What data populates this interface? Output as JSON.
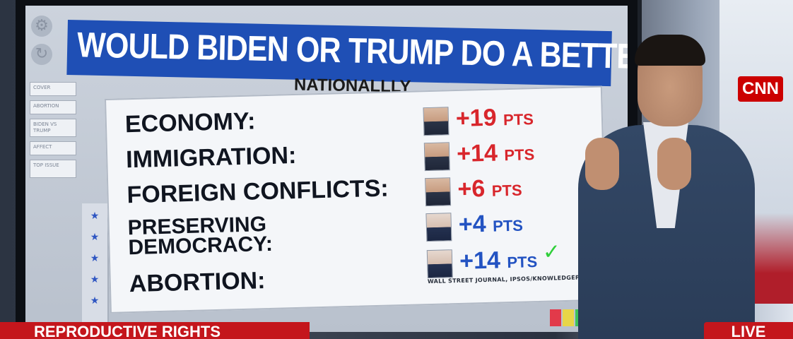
{
  "headline": "WOULD BIDEN OR TRUMP DO A BETTER JOB...",
  "subtitle": "NATIONALLLY",
  "side_menu": [
    "COVER",
    "ABORTION",
    "BIDEN VS TRUMP",
    "AFFECT",
    "TOP ISSUE"
  ],
  "issues": [
    {
      "label": "ECONOMY:",
      "candidate": "trump",
      "value": "+19",
      "unit": "PTS",
      "color": "#d8262c"
    },
    {
      "label": "IMMIGRATION:",
      "candidate": "trump",
      "value": "+14",
      "unit": "PTS",
      "color": "#d8262c"
    },
    {
      "label": "FOREIGN CONFLICTS:",
      "candidate": "trump",
      "value": "+6",
      "unit": "PTS",
      "color": "#d8262c"
    },
    {
      "label": "PRESERVING DEMOCRACY:",
      "candidate": "biden",
      "value": "+4",
      "unit": "PTS",
      "color": "#2353c2"
    },
    {
      "label": "ABORTION:",
      "candidate": "biden",
      "value": "+14",
      "unit": "PTS",
      "color": "#2353c2"
    }
  ],
  "source": "WALL STREET JOURNAL, IPSOS/KNOWLEDGEPANEL",
  "network_logo": "CNN",
  "lower_third": "REPRODUCTIVE RIGHTS",
  "live_badge": "LIVE",
  "colors": {
    "trump": "#d8262c",
    "biden": "#2353c2",
    "banner": "#1f4fb5",
    "cnn_red": "#cc0000"
  }
}
